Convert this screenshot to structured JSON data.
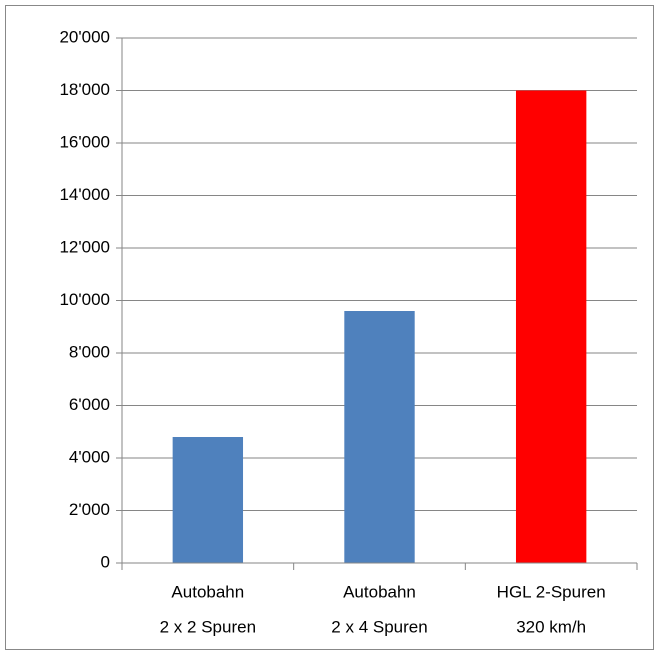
{
  "chart_data": {
    "type": "bar",
    "categories": [
      [
        "Autobahn",
        "2 x 2 Spuren"
      ],
      [
        "Autobahn",
        "2 x 4 Spuren"
      ],
      [
        "HGL 2-Spuren",
        "320 km/h"
      ]
    ],
    "values": [
      4800,
      9600,
      18000
    ],
    "colors": [
      "#4f81bd",
      "#4f81bd",
      "#ff0000"
    ],
    "ylim": [
      0,
      20000
    ],
    "yticks": [
      0,
      {
        "value": 2000,
        "label": "2'000"
      },
      {
        "value": 4000,
        "label": "4'000"
      },
      {
        "value": 6000,
        "label": "6'000"
      },
      {
        "value": 8000,
        "label": "8'000"
      },
      {
        "value": 10000,
        "label": "10'000"
      },
      {
        "value": 12000,
        "label": "12'000"
      },
      {
        "value": 14000,
        "label": "14'000"
      },
      {
        "value": 16000,
        "label": "16'000"
      },
      {
        "value": 18000,
        "label": "18'000"
      },
      {
        "value": 20000,
        "label": "20'000"
      }
    ],
    "grid": true
  }
}
